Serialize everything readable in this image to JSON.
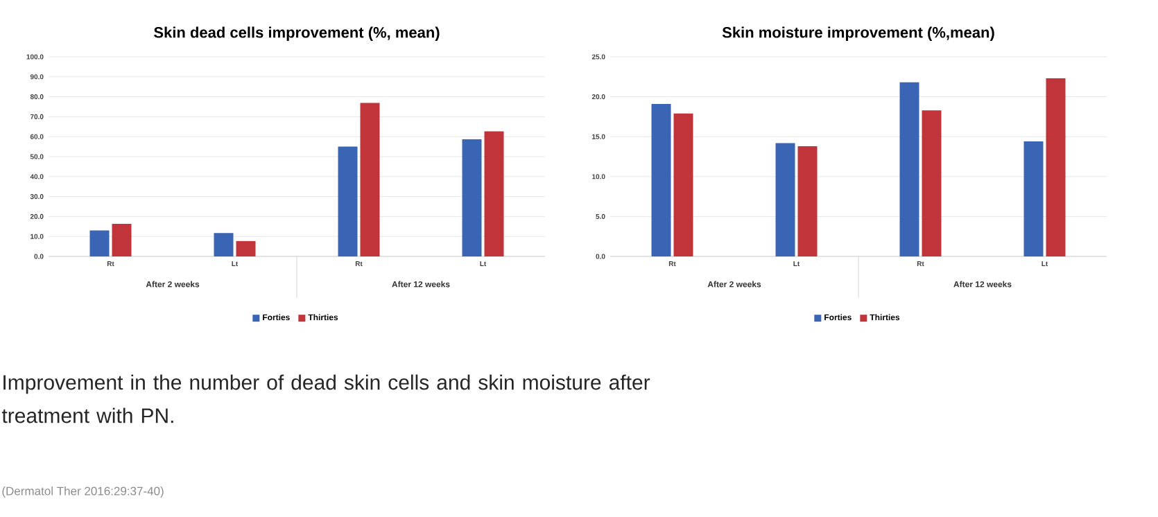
{
  "chart_data": [
    {
      "type": "bar",
      "title": "Skin dead cells improvement (%, mean)",
      "categories": [
        "Rt",
        "Lt",
        "Rt",
        "Lt"
      ],
      "series": [
        {
          "name": "Forties",
          "color": "#3a65b5",
          "values": [
            13.0,
            11.7,
            55.0,
            58.7
          ]
        },
        {
          "name": "Thirties",
          "color": "#c0343a",
          "values": [
            16.3,
            7.7,
            76.9,
            62.7
          ]
        }
      ],
      "annotations": [
        "After 2 weeks",
        "After 12 weeks"
      ],
      "ylim": [
        0,
        100
      ],
      "yticks": [
        {
          "value": 0,
          "label": "0.0"
        },
        {
          "value": 10,
          "label": "10.0"
        },
        {
          "value": 20,
          "label": "20.0"
        },
        {
          "value": 30,
          "label": "30.0"
        },
        {
          "value": 40,
          "label": "40.0"
        },
        {
          "value": 50,
          "label": "50.0"
        },
        {
          "value": 60,
          "label": "60.0"
        },
        {
          "value": 70,
          "label": "70.0"
        },
        {
          "value": 80,
          "label": "80.0"
        },
        {
          "value": 90,
          "label": "90.0"
        },
        {
          "value": 100,
          "label": "100.0"
        }
      ],
      "grid": "y",
      "legend": "bottom"
    },
    {
      "type": "bar",
      "title": "Skin moisture improvement (%,mean)",
      "categories": [
        "Rt",
        "Lt",
        "Rt",
        "Lt"
      ],
      "series": [
        {
          "name": "Forties",
          "color": "#3a65b5",
          "values": [
            19.1,
            14.2,
            21.8,
            14.4
          ]
        },
        {
          "name": "Thirties",
          "color": "#c0343a",
          "values": [
            17.9,
            13.8,
            18.3,
            22.3
          ]
        }
      ],
      "annotations": [
        "After 2 weeks",
        "After 12 weeks"
      ],
      "ylim": [
        0,
        25
      ],
      "yticks": [
        {
          "value": 0,
          "label": "0.0"
        },
        {
          "value": 5,
          "label": "5.0"
        },
        {
          "value": 10,
          "label": "10.0"
        },
        {
          "value": 15,
          "label": "15.0"
        },
        {
          "value": 20,
          "label": "20.0"
        },
        {
          "value": 25,
          "label": "25.0"
        }
      ],
      "grid": "y",
      "legend": "bottom"
    },
    {
      "type": "other",
      "title": "Improvement in the number of dead skin cells and skin moisture after treatment with PN.",
      "annotations": [
        "(Dermatol Ther 2016:29:37-40)"
      ]
    }
  ]
}
